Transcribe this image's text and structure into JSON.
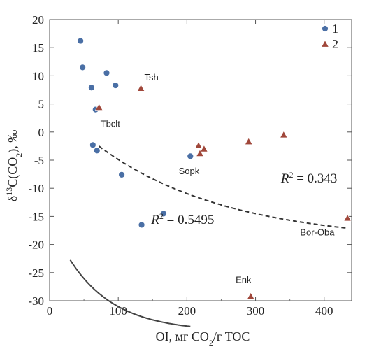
{
  "chart_data": {
    "type": "scatter",
    "xlabel_main": "OI, мг CO",
    "xlabel_sub": "2",
    "xlabel_tail": "/г TOC",
    "ylabel_parts": [
      "δ",
      "13",
      "C(CO",
      "2",
      "), ‰"
    ],
    "xlim": [
      0,
      440
    ],
    "ylim": [
      -30,
      20
    ],
    "x_ticks": [
      0,
      100,
      200,
      300,
      400
    ],
    "y_ticks": [
      -30,
      -25,
      -20,
      -15,
      -10,
      -5,
      0,
      5,
      10,
      15,
      20
    ],
    "series": [
      {
        "name": "1",
        "marker": "circle",
        "color": "#4a6fa5",
        "points": [
          {
            "x": 45,
            "y": 16.2
          },
          {
            "x": 48,
            "y": 11.5
          },
          {
            "x": 83,
            "y": 10.5
          },
          {
            "x": 96,
            "y": 8.3
          },
          {
            "x": 61,
            "y": 7.9
          },
          {
            "x": 67,
            "y": 4.0
          },
          {
            "x": 63,
            "y": -2.3
          },
          {
            "x": 69,
            "y": -3.3
          },
          {
            "x": 105,
            "y": -7.6
          },
          {
            "x": 205,
            "y": -4.3
          },
          {
            "x": 166,
            "y": -14.5
          },
          {
            "x": 134,
            "y": -16.5
          }
        ]
      },
      {
        "name": "2",
        "marker": "triangle",
        "color": "#a0473a",
        "points": [
          {
            "x": 133,
            "y": 7.8
          },
          {
            "x": 72,
            "y": 4.4
          },
          {
            "x": 217,
            "y": -2.4
          },
          {
            "x": 225,
            "y": -3.0
          },
          {
            "x": 219,
            "y": -3.8
          },
          {
            "x": 290,
            "y": -1.7
          },
          {
            "x": 341,
            "y": -0.5
          },
          {
            "x": 434,
            "y": -15.3
          },
          {
            "x": 293,
            "y": -29.2
          }
        ]
      }
    ],
    "fits": [
      {
        "style": "solid",
        "color": "#444444",
        "a": 20.0,
        "b": -0.015,
        "c": -35.5,
        "x_start": 30,
        "x_end": 205
      },
      {
        "style": "dashed",
        "color": "#333333",
        "a": 25.0,
        "b": -0.0053,
        "c": -19.6,
        "x_start": 72,
        "x_end": 432
      }
    ],
    "point_labels": [
      {
        "text": "Tsh",
        "x": 138,
        "y": 9.2
      },
      {
        "text": "Tbclt",
        "x": 74,
        "y": 0.9
      },
      {
        "text": "Sopk",
        "x": 188,
        "y": -7.5
      },
      {
        "text": "Bor-Oba",
        "x": 365,
        "y": -18.4
      },
      {
        "text": "Enk",
        "x": 271,
        "y": -26.8
      }
    ],
    "r2_labels": [
      {
        "base": "R",
        "sup": "2",
        "tail": " = 0.5495",
        "x": 148,
        "y": -16.3
      },
      {
        "base": "R",
        "sup": "2",
        "tail": " = 0.343",
        "x": 337,
        "y": -9.0
      }
    ],
    "legend": {
      "placement": "top-right",
      "entries": [
        {
          "label": "1",
          "marker": "circle",
          "color": "#4a6fa5"
        },
        {
          "label": "2",
          "marker": "triangle",
          "color": "#a0473a"
        }
      ]
    }
  }
}
